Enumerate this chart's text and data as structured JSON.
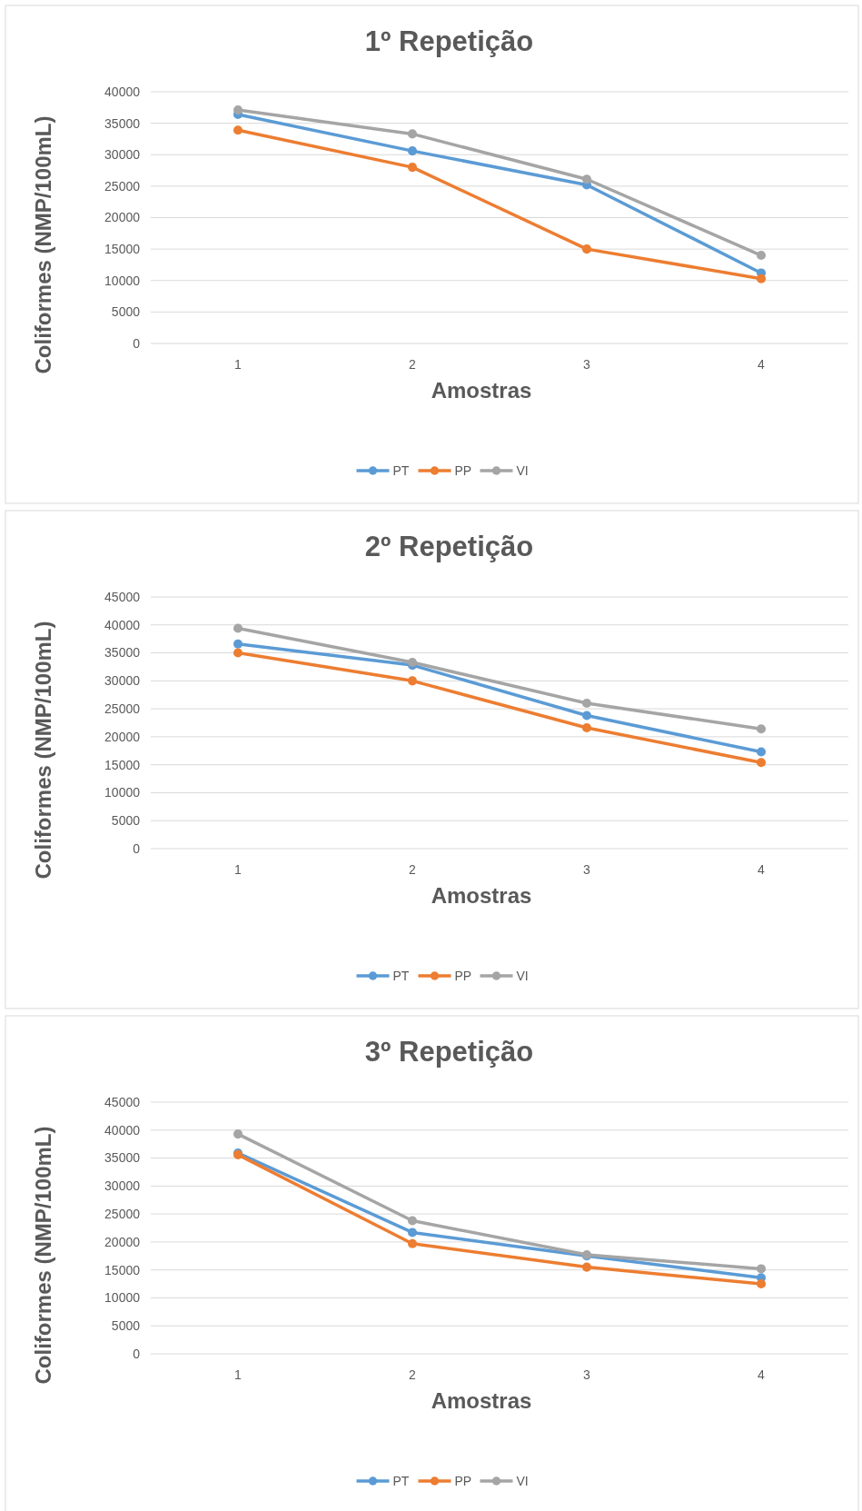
{
  "chart_data": [
    {
      "type": "line",
      "title": "1º Repetição",
      "xlabel": "Amostras",
      "ylabel": "Coliformes (NMP/100mL)",
      "categories": [
        "1",
        "2",
        "3",
        "4"
      ],
      "series": [
        {
          "name": "PT",
          "color": "#5b9bd5",
          "values": [
            36400,
            30600,
            25200,
            11200
          ]
        },
        {
          "name": "PP",
          "color": "#ed7d31",
          "values": [
            33900,
            28000,
            15000,
            10300
          ]
        },
        {
          "name": "VI",
          "color": "#a5a5a5",
          "values": [
            37100,
            33300,
            26100,
            14000
          ]
        }
      ],
      "ylim": [
        0,
        40000
      ],
      "yticks": [
        0,
        5000,
        10000,
        15000,
        20000,
        25000,
        30000,
        35000,
        40000
      ],
      "grid": "y",
      "legend": "bottom",
      "marker": "circle"
    },
    {
      "type": "line",
      "title": "2º Repetição",
      "xlabel": "Amostras",
      "ylabel": "Coliformes (NMP/100mL)",
      "categories": [
        "1",
        "2",
        "3",
        "4"
      ],
      "series": [
        {
          "name": "PT",
          "color": "#5b9bd5",
          "values": [
            36600,
            32800,
            23800,
            17300
          ]
        },
        {
          "name": "PP",
          "color": "#ed7d31",
          "values": [
            35000,
            30000,
            21600,
            15400
          ]
        },
        {
          "name": "VI",
          "color": "#a5a5a5",
          "values": [
            39400,
            33300,
            26000,
            21400
          ]
        }
      ],
      "ylim": [
        0,
        45000
      ],
      "yticks": [
        0,
        5000,
        10000,
        15000,
        20000,
        25000,
        30000,
        35000,
        40000,
        45000
      ],
      "grid": "y",
      "legend": "bottom",
      "marker": "circle"
    },
    {
      "type": "line",
      "title": "3º Repetição",
      "xlabel": "Amostras",
      "ylabel": "Coliformes (NMP/100mL)",
      "categories": [
        "1",
        "2",
        "3",
        "4"
      ],
      "series": [
        {
          "name": "PT",
          "color": "#5b9bd5",
          "values": [
            35900,
            21700,
            17500,
            13600
          ]
        },
        {
          "name": "PP",
          "color": "#ed7d31",
          "values": [
            35600,
            19700,
            15500,
            12500
          ]
        },
        {
          "name": "VI",
          "color": "#a5a5a5",
          "values": [
            39300,
            23800,
            17700,
            15200
          ]
        }
      ],
      "ylim": [
        0,
        45000
      ],
      "yticks": [
        0,
        5000,
        10000,
        15000,
        20000,
        25000,
        30000,
        35000,
        40000,
        45000
      ],
      "grid": "y",
      "legend": "bottom",
      "marker": "circle"
    }
  ]
}
